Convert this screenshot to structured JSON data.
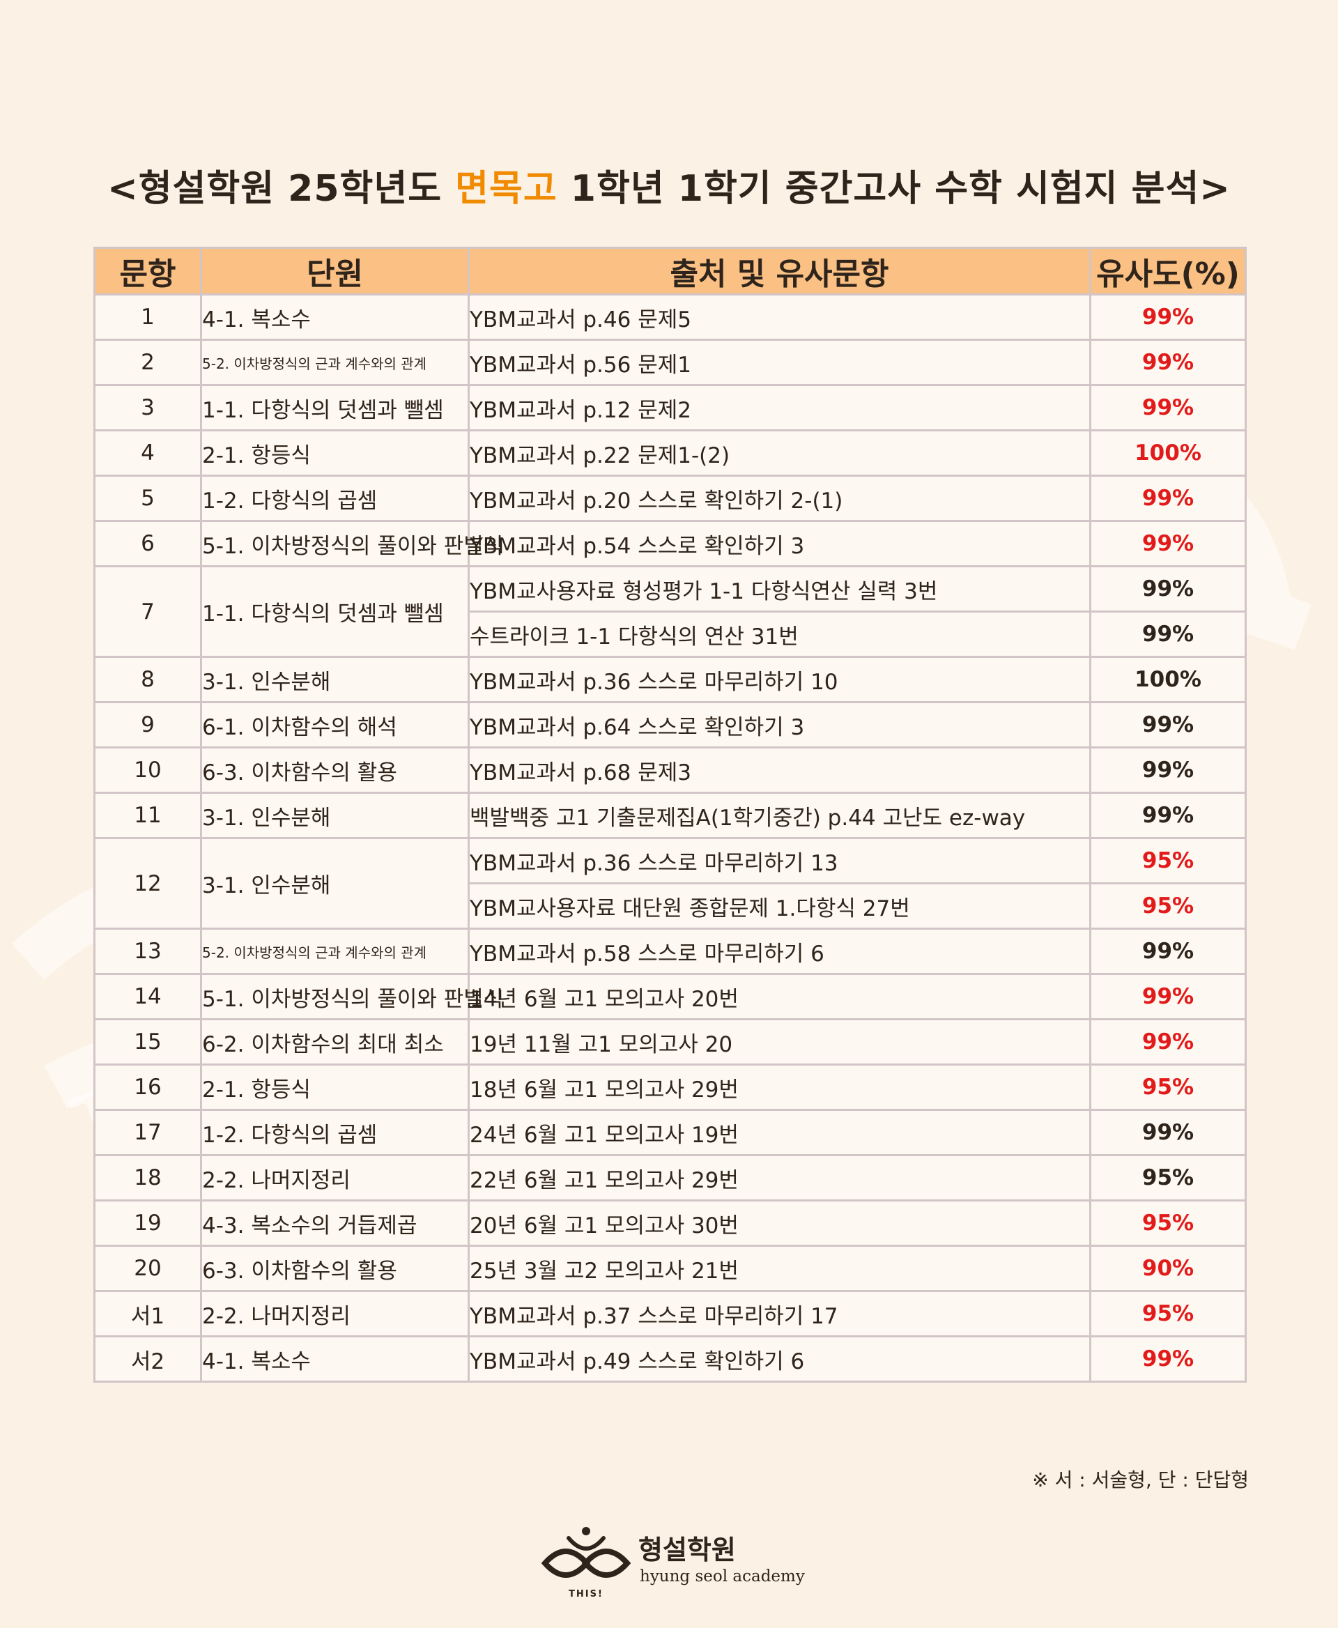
{
  "header": {
    "title_before": "<형설학원 25학년도 ",
    "title_highlight": "면목고",
    "title_after": " 1학년 1학기 중간고사 수학 시험지 분석>"
  },
  "table": {
    "columns": [
      "문항",
      "단원",
      "출처 및 유사문항",
      "유사도(%)"
    ],
    "rows": [
      {
        "no": "1",
        "unit": "4-1. 복소수",
        "entries": [
          {
            "source": "YBM교과서 p.46 문제5",
            "similarity": "99%",
            "color": "red"
          }
        ]
      },
      {
        "no": "2",
        "unit": "5-2. 이차방정식의 근과 계수와의 관계",
        "small": true,
        "entries": [
          {
            "source": "YBM교과서 p.56 문제1",
            "similarity": "99%",
            "color": "red"
          }
        ]
      },
      {
        "no": "3",
        "unit": "1-1. 다항식의 덧셈과 뺄셈",
        "entries": [
          {
            "source": "YBM교과서 p.12 문제2",
            "similarity": "99%",
            "color": "red"
          }
        ]
      },
      {
        "no": "4",
        "unit": "2-1. 항등식",
        "entries": [
          {
            "source": "YBM교과서 p.22 문제1-(2)",
            "similarity": "100%",
            "color": "red"
          }
        ]
      },
      {
        "no": "5",
        "unit": "1-2. 다항식의 곱셈",
        "entries": [
          {
            "source": "YBM교과서 p.20 스스로 확인하기 2-(1)",
            "similarity": "99%",
            "color": "red"
          }
        ]
      },
      {
        "no": "6",
        "unit": "5-1. 이차방정식의 풀이와 판별식",
        "entries": [
          {
            "source": "YBM교과서 p.54 스스로 확인하기 3",
            "similarity": "99%",
            "color": "red"
          }
        ]
      },
      {
        "no": "7",
        "unit": "1-1. 다항식의 덧셈과 뺄셈",
        "entries": [
          {
            "source": "YBM교사용자료 형성평가 1-1 다항식연산 실력 3번",
            "similarity": "99%",
            "color": "dark"
          },
          {
            "source": "수트라이크 1-1 다항식의 연산 31번",
            "similarity": "99%",
            "color": "dark"
          }
        ]
      },
      {
        "no": "8",
        "unit": "3-1. 인수분해",
        "entries": [
          {
            "source": "YBM교과서 p.36 스스로 마무리하기 10",
            "similarity": "100%",
            "color": "dark"
          }
        ]
      },
      {
        "no": "9",
        "unit": "6-1. 이차함수의 해석",
        "entries": [
          {
            "source": "YBM교과서 p.64 스스로 확인하기 3",
            "similarity": "99%",
            "color": "dark"
          }
        ]
      },
      {
        "no": "10",
        "unit": "6-3. 이차함수의 활용",
        "entries": [
          {
            "source": "YBM교과서 p.68 문제3",
            "similarity": "99%",
            "color": "dark"
          }
        ]
      },
      {
        "no": "11",
        "unit": "3-1. 인수분해",
        "entries": [
          {
            "source": "백발백중 고1 기출문제집A(1학기중간) p.44 고난도 ez-way",
            "similarity": "99%",
            "color": "dark"
          }
        ]
      },
      {
        "no": "12",
        "unit": "3-1. 인수분해",
        "entries": [
          {
            "source": "YBM교과서 p.36 스스로 마무리하기 13",
            "similarity": "95%",
            "color": "red"
          },
          {
            "source": "YBM교사용자료 대단원 종합문제 1.다항식 27번",
            "similarity": "95%",
            "color": "red"
          }
        ]
      },
      {
        "no": "13",
        "unit": "5-2. 이차방정식의 근과 계수와의 관계",
        "small": true,
        "entries": [
          {
            "source": "YBM교과서 p.58 스스로 마무리하기 6",
            "similarity": "99%",
            "color": "dark"
          }
        ]
      },
      {
        "no": "14",
        "unit": "5-1. 이차방정식의 풀이와 판별식",
        "entries": [
          {
            "source": "14년 6월 고1 모의고사 20번",
            "similarity": "99%",
            "color": "red"
          }
        ]
      },
      {
        "no": "15",
        "unit": "6-2. 이차함수의 최대 최소",
        "entries": [
          {
            "source": "19년 11월 고1 모의고사 20",
            "similarity": "99%",
            "color": "red"
          }
        ]
      },
      {
        "no": "16",
        "unit": "2-1. 항등식",
        "entries": [
          {
            "source": "18년 6월 고1 모의고사 29번",
            "similarity": "95%",
            "color": "red"
          }
        ]
      },
      {
        "no": "17",
        "unit": "1-2. 다항식의 곱셈",
        "entries": [
          {
            "source": "24년 6월 고1 모의고사 19번",
            "similarity": "99%",
            "color": "dark"
          }
        ]
      },
      {
        "no": "18",
        "unit": "2-2. 나머지정리",
        "entries": [
          {
            "source": "22년 6월 고1 모의고사 29번",
            "similarity": "95%",
            "color": "dark"
          }
        ]
      },
      {
        "no": "19",
        "unit": "4-3. 복소수의 거듭제곱",
        "entries": [
          {
            "source": "20년 6월 고1 모의고사 30번",
            "similarity": "95%",
            "color": "red"
          }
        ]
      },
      {
        "no": "20",
        "unit": "6-3. 이차함수의 활용",
        "entries": [
          {
            "source": "25년 3월 고2 모의고사 21번",
            "similarity": "90%",
            "color": "red"
          }
        ]
      },
      {
        "no": "서1",
        "unit": "2-2. 나머지정리",
        "entries": [
          {
            "source": "YBM교과서 p.37 스스로 마무리하기 17",
            "similarity": "95%",
            "color": "red"
          }
        ]
      },
      {
        "no": "서2",
        "unit": "4-1. 복소수",
        "entries": [
          {
            "source": "YBM교과서 p.49 스스로 확인하기 6",
            "similarity": "99%",
            "color": "red"
          }
        ]
      }
    ]
  },
  "footnote": "※ 서 : 서술형, 단 : 단답형",
  "footer": {
    "logo_name": "형설학원",
    "logo_subtitle": "hyung seol academy",
    "logo_mark_text": "THIS!"
  },
  "watermark_text": "THIS!",
  "colors": {
    "background": "#fbf1e4",
    "header_fill": "#fbc083",
    "title_highlight": "#f08a00",
    "red": "#e21a1a",
    "dark": "#2e241b"
  }
}
